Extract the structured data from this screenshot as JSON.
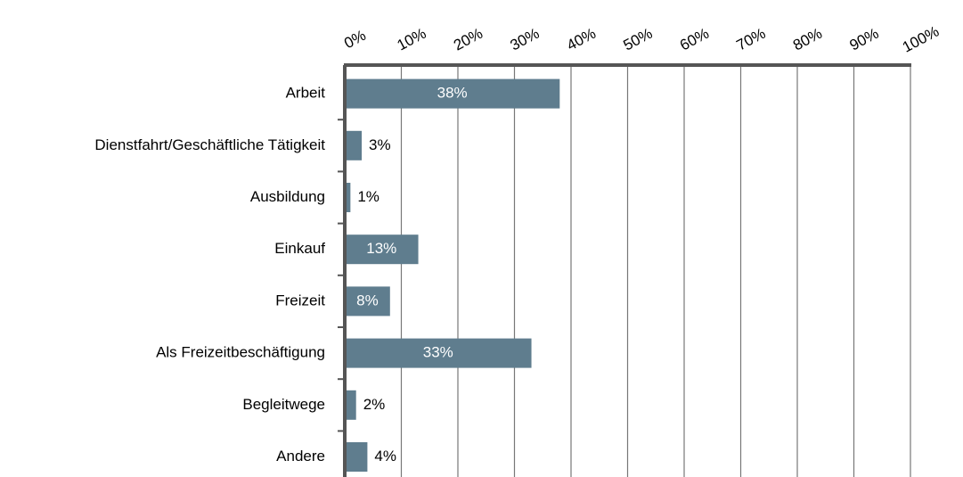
{
  "chart_data": {
    "type": "bar",
    "orientation": "horizontal",
    "categories": [
      "Arbeit",
      "Dienstfahrt/Geschäftliche Tätigkeit",
      "Ausbildung",
      "Einkauf",
      "Freizeit",
      "Als Freizeitbeschäftigung",
      "Begleitwege",
      "Andere"
    ],
    "values": [
      38,
      3,
      1,
      13,
      8,
      33,
      2,
      4
    ],
    "value_labels": [
      "38%",
      "3%",
      "1%",
      "13%",
      "8%",
      "33%",
      "2%",
      "4%"
    ],
    "color": "#5f7d8e",
    "xlim": [
      0,
      100
    ],
    "xticks": [
      {
        "value": 0,
        "label": "0%"
      },
      {
        "value": 10,
        "label": "10%"
      },
      {
        "value": 20,
        "label": "20%"
      },
      {
        "value": 30,
        "label": "30%"
      },
      {
        "value": 40,
        "label": "40%"
      },
      {
        "value": 50,
        "label": "50%"
      },
      {
        "value": 60,
        "label": "60%"
      },
      {
        "value": 70,
        "label": "70%"
      },
      {
        "value": 80,
        "label": "80%"
      },
      {
        "value": 90,
        "label": "90%"
      },
      {
        "value": 100,
        "label": "100%"
      }
    ],
    "grid": true
  }
}
